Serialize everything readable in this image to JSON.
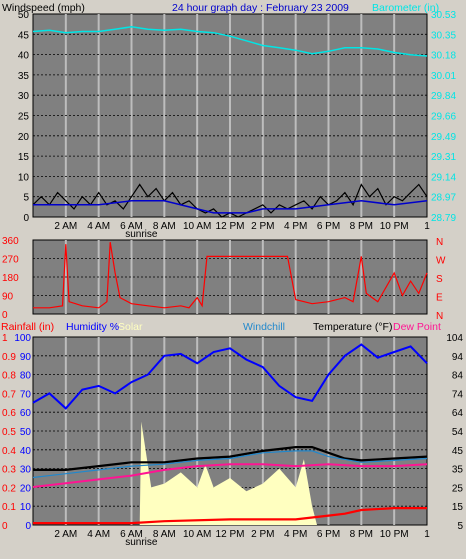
{
  "colors": {
    "bg": "#d4d0c8",
    "plot": "#808080",
    "grid": "#bdbdbd",
    "dash": "#000000",
    "barometer": "#00e5e5",
    "wind": "#000000",
    "wind_avg": "#0000cc",
    "direction": "#ff0000",
    "humidity": "#0000ff",
    "solar": "#ffffc0",
    "temperature": "#000000",
    "dewpoint": "#ff1493",
    "windchill": "#2288cc",
    "rain": "#ff0000"
  },
  "chart_data": [
    {
      "id": "wind_baro",
      "type": "line",
      "title": "24 hour graph day : February 23 2009",
      "ylabel_left": "Windspeed (mph)",
      "ylabel_right": "Barometer (in)",
      "ylim_left": [
        0,
        50
      ],
      "ylim_right": [
        28.79,
        30.53
      ],
      "left_ticks": [
        "50",
        "45",
        "40",
        "35",
        "30",
        "25",
        "20",
        "15",
        "10",
        "5",
        "0"
      ],
      "right_ticks": [
        "30.53",
        "30.35",
        "30.18",
        "30.01",
        "29.84",
        "29.66",
        "29.49",
        "29.31",
        "29.14",
        "28.97",
        "28.79"
      ],
      "x_ticks": [
        "2 AM",
        "4 AM",
        "6 AM",
        "8 AM",
        "10 AM",
        "12 PM",
        "2 PM",
        "4 PM",
        "6 PM",
        "8 PM",
        "10 PM",
        "1"
      ],
      "sunrise_label": "sunrise",
      "sunrise_hour": 6.6,
      "series": [
        {
          "key": "barometer",
          "axis": "right",
          "points": [
            [
              0,
              30.38
            ],
            [
              1,
              30.39
            ],
            [
              2,
              30.37
            ],
            [
              3,
              30.38
            ],
            [
              4,
              30.38
            ],
            [
              5,
              30.4
            ],
            [
              6,
              30.42
            ],
            [
              7,
              30.4
            ],
            [
              8,
              30.39
            ],
            [
              9,
              30.4
            ],
            [
              10,
              30.38
            ],
            [
              11,
              30.37
            ],
            [
              12,
              30.34
            ],
            [
              13,
              30.3
            ],
            [
              14,
              30.26
            ],
            [
              15,
              30.24
            ],
            [
              16,
              30.22
            ],
            [
              17,
              30.19
            ],
            [
              18,
              30.21
            ],
            [
              19,
              30.24
            ],
            [
              20,
              30.24
            ],
            [
              21,
              30.23
            ],
            [
              22,
              30.2
            ],
            [
              23,
              30.18
            ],
            [
              24,
              30.17
            ]
          ]
        },
        {
          "key": "wind",
          "axis": "left",
          "points": [
            [
              0,
              3
            ],
            [
              0.5,
              5
            ],
            [
              1,
              3
            ],
            [
              1.5,
              6
            ],
            [
              2,
              4
            ],
            [
              2.5,
              2
            ],
            [
              3,
              5
            ],
            [
              3.5,
              3
            ],
            [
              4,
              6
            ],
            [
              4.5,
              3
            ],
            [
              5,
              4
            ],
            [
              5.5,
              2
            ],
            [
              6,
              5
            ],
            [
              6.5,
              8
            ],
            [
              7,
              5
            ],
            [
              7.5,
              7
            ],
            [
              8,
              4
            ],
            [
              8.5,
              6
            ],
            [
              9,
              3
            ],
            [
              9.5,
              4
            ],
            [
              10,
              2
            ],
            [
              10.5,
              1
            ],
            [
              11,
              2
            ],
            [
              11.5,
              0
            ],
            [
              12,
              1
            ],
            [
              12.5,
              0
            ],
            [
              13,
              1
            ],
            [
              13.5,
              2
            ],
            [
              14,
              3
            ],
            [
              14.5,
              1
            ],
            [
              15,
              3
            ],
            [
              15.5,
              2
            ],
            [
              16,
              3
            ],
            [
              16.5,
              4
            ],
            [
              17,
              2
            ],
            [
              17.5,
              5
            ],
            [
              18,
              3
            ],
            [
              18.5,
              4
            ],
            [
              19,
              6
            ],
            [
              19.5,
              3
            ],
            [
              20,
              8
            ],
            [
              20.5,
              5
            ],
            [
              21,
              7
            ],
            [
              21.5,
              3
            ],
            [
              22,
              5
            ],
            [
              22.5,
              4
            ],
            [
              23,
              6
            ],
            [
              23.5,
              8
            ],
            [
              24,
              5
            ]
          ]
        },
        {
          "key": "wind_avg",
          "axis": "left",
          "points": [
            [
              0,
              3
            ],
            [
              2,
              3
            ],
            [
              4,
              3
            ],
            [
              6,
              4
            ],
            [
              8,
              4
            ],
            [
              10,
              2
            ],
            [
              11,
              1
            ],
            [
              12,
              1
            ],
            [
              13,
              1
            ],
            [
              14,
              2
            ],
            [
              16,
              2
            ],
            [
              18,
              3
            ],
            [
              20,
              4
            ],
            [
              22,
              3
            ],
            [
              24,
              4
            ]
          ]
        }
      ]
    },
    {
      "id": "direction",
      "type": "line",
      "left_ticks": [
        "360",
        "270",
        "180",
        "90",
        "0"
      ],
      "right_ticks": [
        "N",
        "W",
        "S",
        "E",
        "N"
      ],
      "ylim": [
        0,
        360
      ],
      "series": [
        {
          "key": "direction",
          "points": [
            [
              0,
              30
            ],
            [
              1,
              30
            ],
            [
              1.8,
              40
            ],
            [
              2.0,
              340
            ],
            [
              2.2,
              60
            ],
            [
              3,
              40
            ],
            [
              4,
              30
            ],
            [
              4.5,
              60
            ],
            [
              4.7,
              350
            ],
            [
              5,
              200
            ],
            [
              5.3,
              80
            ],
            [
              6,
              50
            ],
            [
              7,
              40
            ],
            [
              8,
              30
            ],
            [
              9,
              40
            ],
            [
              9.5,
              30
            ],
            [
              10,
              80
            ],
            [
              10.3,
              40
            ],
            [
              10.6,
              280
            ],
            [
              12,
              280
            ],
            [
              14,
              280
            ],
            [
              15.5,
              280
            ],
            [
              16,
              70
            ],
            [
              17,
              50
            ],
            [
              18,
              60
            ],
            [
              19,
              80
            ],
            [
              19.5,
              60
            ],
            [
              20,
              280
            ],
            [
              20.3,
              100
            ],
            [
              21,
              60
            ],
            [
              22,
              200
            ],
            [
              22.5,
              90
            ],
            [
              23,
              160
            ],
            [
              23.5,
              100
            ],
            [
              24,
              200
            ]
          ]
        }
      ]
    },
    {
      "id": "temp_hum",
      "type": "line",
      "legend": [
        "Rainfall (in)",
        "Humidity %",
        "Solar",
        "Windchill",
        "Temperature (°F)",
        "Dew Point"
      ],
      "left_ticks_rain": [
        "1",
        "0.9",
        "0.8",
        "0.7",
        "0.6",
        "0.5",
        "0.4",
        "0.3",
        "0.2",
        "0.1",
        "0"
      ],
      "left_ticks_hum": [
        "100",
        "90",
        "80",
        "70",
        "60",
        "50",
        "40",
        "30",
        "20",
        "10",
        "0"
      ],
      "right_ticks": [
        "104",
        "94",
        "84",
        "74",
        "64",
        "54",
        "45",
        "35",
        "25",
        "15",
        "5"
      ],
      "ylim_left": [
        0,
        100
      ],
      "ylim_right": [
        5,
        104
      ],
      "x_ticks": [
        "2 AM",
        "4 AM",
        "6 AM",
        "8 AM",
        "10 AM",
        "12 PM",
        "2 PM",
        "4 PM",
        "6 PM",
        "8 PM",
        "10 PM",
        "1"
      ],
      "sunrise_label": "sunrise",
      "series": [
        {
          "key": "humidity",
          "axis": "left",
          "points": [
            [
              0,
              65
            ],
            [
              1,
              70
            ],
            [
              2,
              62
            ],
            [
              3,
              72
            ],
            [
              4,
              74
            ],
            [
              5,
              70
            ],
            [
              6,
              76
            ],
            [
              7,
              80
            ],
            [
              8,
              90
            ],
            [
              9,
              91
            ],
            [
              10,
              86
            ],
            [
              11,
              92
            ],
            [
              12,
              94
            ],
            [
              13,
              88
            ],
            [
              14,
              84
            ],
            [
              15,
              74
            ],
            [
              16,
              68
            ],
            [
              17,
              66
            ],
            [
              18,
              80
            ],
            [
              19,
              90
            ],
            [
              20,
              96
            ],
            [
              21,
              89
            ],
            [
              22,
              92
            ],
            [
              23,
              95
            ],
            [
              24,
              86
            ]
          ]
        },
        {
          "key": "solar",
          "axis": "left",
          "points": [
            [
              6.5,
              0
            ],
            [
              6.6,
              55
            ],
            [
              7.2,
              20
            ],
            [
              8,
              22
            ],
            [
              9,
              28
            ],
            [
              10,
              20
            ],
            [
              10.5,
              32
            ],
            [
              11,
              20
            ],
            [
              12,
              25
            ],
            [
              13,
              18
            ],
            [
              14,
              22
            ],
            [
              15,
              30
            ],
            [
              16,
              20
            ],
            [
              16.5,
              35
            ],
            [
              17,
              10
            ],
            [
              17.3,
              0
            ]
          ]
        },
        {
          "key": "temperature",
          "axis": "right",
          "points": [
            [
              0,
              34
            ],
            [
              2,
              34
            ],
            [
              4,
              36
            ],
            [
              6,
              38
            ],
            [
              8,
              38
            ],
            [
              10,
              40
            ],
            [
              12,
              41
            ],
            [
              14,
              44
            ],
            [
              16,
              46
            ],
            [
              17,
              46
            ],
            [
              18,
              43
            ],
            [
              19,
              40
            ],
            [
              20,
              39
            ],
            [
              22,
              40
            ],
            [
              24,
              41
            ]
          ]
        },
        {
          "key": "windchill",
          "axis": "right",
          "points": [
            [
              0,
              30
            ],
            [
              2,
              32
            ],
            [
              4,
              34
            ],
            [
              6,
              36
            ],
            [
              8,
              37
            ],
            [
              10,
              39
            ],
            [
              12,
              40
            ],
            [
              14,
              43
            ],
            [
              16,
              44
            ],
            [
              17,
              44
            ],
            [
              18,
              41
            ],
            [
              20,
              38
            ],
            [
              22,
              39
            ],
            [
              24,
              40
            ]
          ]
        },
        {
          "key": "dewpoint",
          "axis": "right",
          "points": [
            [
              0,
              25
            ],
            [
              2,
              27
            ],
            [
              4,
              29
            ],
            [
              6,
              31
            ],
            [
              8,
              34
            ],
            [
              10,
              36
            ],
            [
              12,
              37
            ],
            [
              14,
              37
            ],
            [
              16,
              36
            ],
            [
              18,
              37
            ],
            [
              20,
              36
            ],
            [
              22,
              36
            ],
            [
              24,
              37
            ]
          ]
        },
        {
          "key": "rain",
          "axis": "rain",
          "points": [
            [
              0,
              0.01
            ],
            [
              6,
              0.01
            ],
            [
              8,
              0.02
            ],
            [
              12,
              0.03
            ],
            [
              16,
              0.03
            ],
            [
              17,
              0.04
            ],
            [
              18,
              0.05
            ],
            [
              19,
              0.06
            ],
            [
              20,
              0.08
            ],
            [
              22,
              0.09
            ],
            [
              24,
              0.09
            ]
          ]
        }
      ]
    }
  ]
}
